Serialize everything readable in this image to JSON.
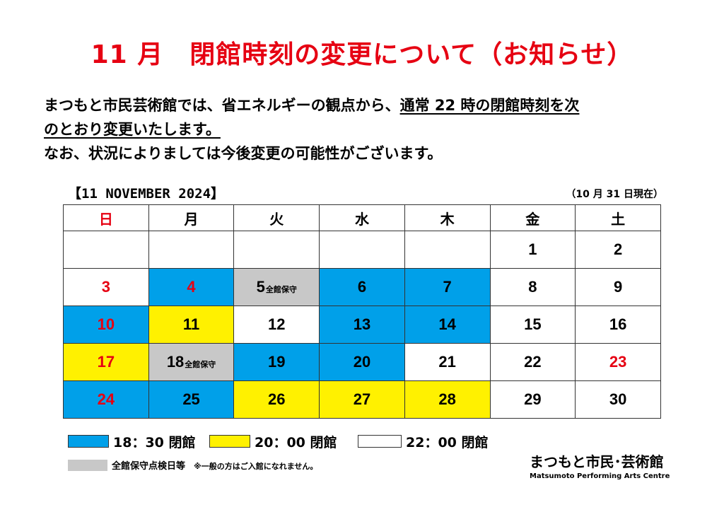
{
  "title": "11 月　閉館時刻の変更について（お知らせ）",
  "intro": {
    "line1_a": "まつもと市民芸術館では、省エネルギーの観点から、",
    "line1_b": "通常 22 時の閉館時刻を次",
    "line2": "のとおり変更いたします。",
    "line3": "なお、状況によりましては今後変更の可能性がございます。"
  },
  "calendar": {
    "label": "【11 NOVEMBER  2024】",
    "as_of": "（10 月 31 日現在）",
    "weekdays": [
      "日",
      "月",
      "火",
      "水",
      "木",
      "金",
      "土"
    ],
    "weeks": [
      [
        {
          "day": "",
          "fill": "white",
          "red": false
        },
        {
          "day": "",
          "fill": "white",
          "red": false
        },
        {
          "day": "",
          "fill": "white",
          "red": false
        },
        {
          "day": "",
          "fill": "white",
          "red": false
        },
        {
          "day": "",
          "fill": "white",
          "red": false
        },
        {
          "day": "1",
          "fill": "white",
          "red": false
        },
        {
          "day": "2",
          "fill": "white",
          "red": false
        }
      ],
      [
        {
          "day": "3",
          "fill": "white",
          "red": true
        },
        {
          "day": "4",
          "fill": "blue",
          "red": true
        },
        {
          "day": "5",
          "fill": "gray",
          "red": false,
          "note": "全館保守"
        },
        {
          "day": "6",
          "fill": "blue",
          "red": false
        },
        {
          "day": "7",
          "fill": "blue",
          "red": false
        },
        {
          "day": "8",
          "fill": "white",
          "red": false
        },
        {
          "day": "9",
          "fill": "white",
          "red": false
        }
      ],
      [
        {
          "day": "10",
          "fill": "blue",
          "red": true
        },
        {
          "day": "11",
          "fill": "yellow",
          "red": false
        },
        {
          "day": "12",
          "fill": "white",
          "red": false
        },
        {
          "day": "13",
          "fill": "blue",
          "red": false
        },
        {
          "day": "14",
          "fill": "blue",
          "red": false
        },
        {
          "day": "15",
          "fill": "white",
          "red": false
        },
        {
          "day": "16",
          "fill": "white",
          "red": false
        }
      ],
      [
        {
          "day": "17",
          "fill": "yellow",
          "red": true
        },
        {
          "day": "18",
          "fill": "gray",
          "red": false,
          "note": "全館保守"
        },
        {
          "day": "19",
          "fill": "blue",
          "red": false
        },
        {
          "day": "20",
          "fill": "blue",
          "red": false
        },
        {
          "day": "21",
          "fill": "white",
          "red": false
        },
        {
          "day": "22",
          "fill": "white",
          "red": false
        },
        {
          "day": "23",
          "fill": "white",
          "red": true
        }
      ],
      [
        {
          "day": "24",
          "fill": "blue",
          "red": true
        },
        {
          "day": "25",
          "fill": "blue",
          "red": false
        },
        {
          "day": "26",
          "fill": "yellow",
          "red": false
        },
        {
          "day": "27",
          "fill": "yellow",
          "red": false
        },
        {
          "day": "28",
          "fill": "yellow",
          "red": false
        },
        {
          "day": "29",
          "fill": "white",
          "red": false
        },
        {
          "day": "30",
          "fill": "white",
          "red": false
        }
      ]
    ]
  },
  "legend": {
    "blue_label": "18：30 閉館",
    "yellow_label": "20：00 閉館",
    "white_label": "22：00 閉館",
    "maintenance_label": "全館保守点検日等",
    "maintenance_note": "※一般の方はご入館になれません。"
  },
  "logo": {
    "jp": "まつもと市民･芸術館",
    "en": "Matsumoto Performing Arts Centre"
  },
  "colors": {
    "accent_red": "#e60012",
    "blue": "#00a0e9",
    "yellow": "#fff100",
    "gray": "#c8c8c8"
  }
}
